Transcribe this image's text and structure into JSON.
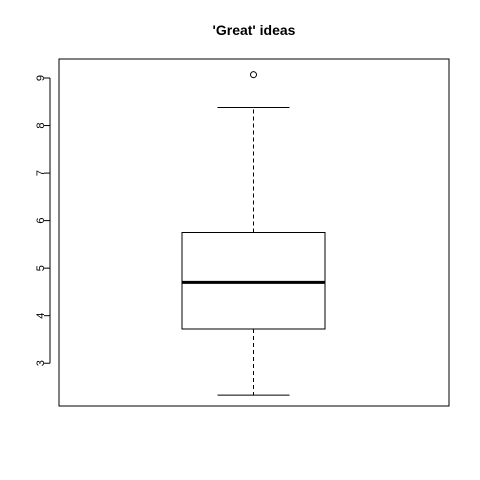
{
  "chart_data": {
    "type": "boxplot",
    "title": "'Great' ideas",
    "xlabel": "",
    "ylabel": "",
    "ylim": [
      2.1,
      9.4
    ],
    "yticks": [
      3,
      4,
      5,
      6,
      7,
      8,
      9
    ],
    "ytick_labels": [
      "3",
      "4",
      "5",
      "6",
      "7",
      "8",
      "9"
    ],
    "grid": false,
    "boxes": [
      {
        "whisker_low": 2.33,
        "q1": 3.72,
        "median": 4.7,
        "q3": 5.75,
        "whisker_high": 8.38,
        "outliers": [
          9.07
        ]
      }
    ]
  }
}
